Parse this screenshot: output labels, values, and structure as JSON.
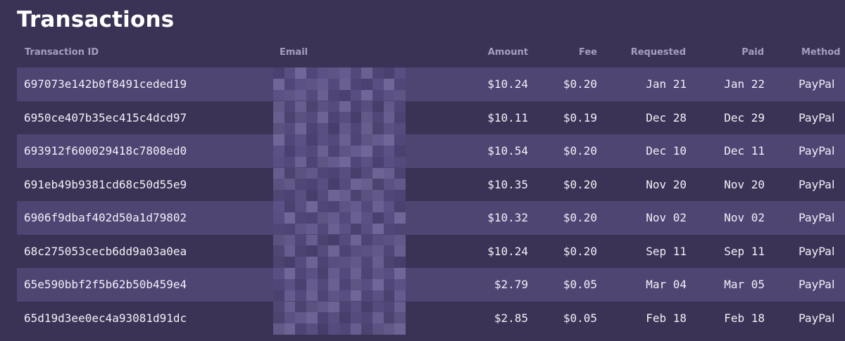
{
  "page": {
    "title": "Transactions"
  },
  "columns": {
    "transaction_id": "Transaction ID",
    "email": "Email",
    "amount": "Amount",
    "fee": "Fee",
    "requested": "Requested",
    "paid": "Paid",
    "method": "Method"
  },
  "rows": [
    {
      "id": "697073e142b0f8491ceded19",
      "email": "",
      "amount": "$10.24",
      "fee": "$0.20",
      "requested": "Jan 21",
      "paid": "Jan 22",
      "method": "PayPal"
    },
    {
      "id": "6950ce407b35ec415c4dcd97",
      "email": "",
      "amount": "$10.11",
      "fee": "$0.19",
      "requested": "Dec 28",
      "paid": "Dec 29",
      "method": "PayPal"
    },
    {
      "id": "693912f600029418c7808ed0",
      "email": "",
      "amount": "$10.54",
      "fee": "$0.20",
      "requested": "Dec 10",
      "paid": "Dec 11",
      "method": "PayPal"
    },
    {
      "id": "691eb49b9381cd68c50d55e9",
      "email": "",
      "amount": "$10.35",
      "fee": "$0.20",
      "requested": "Nov 20",
      "paid": "Nov 20",
      "method": "PayPal"
    },
    {
      "id": "6906f9dbaf402d50a1d79802",
      "email": "",
      "amount": "$10.32",
      "fee": "$0.20",
      "requested": "Nov 02",
      "paid": "Nov 02",
      "method": "PayPal"
    },
    {
      "id": "68c275053cecb6dd9a03a0ea",
      "email": "",
      "amount": "$10.24",
      "fee": "$0.20",
      "requested": "Sep 11",
      "paid": "Sep 11",
      "method": "PayPal"
    },
    {
      "id": "65e590bbf2f5b62b50b459e4",
      "email": "",
      "amount": "$2.79",
      "fee": "$0.05",
      "requested": "Mar 04",
      "paid": "Mar 05",
      "method": "PayPal"
    },
    {
      "id": "65d19d3ee0ec4a93081d91dc",
      "email": "",
      "amount": "$2.85",
      "fee": "$0.05",
      "requested": "Feb 18",
      "paid": "Feb 18",
      "method": "PayPal"
    }
  ]
}
